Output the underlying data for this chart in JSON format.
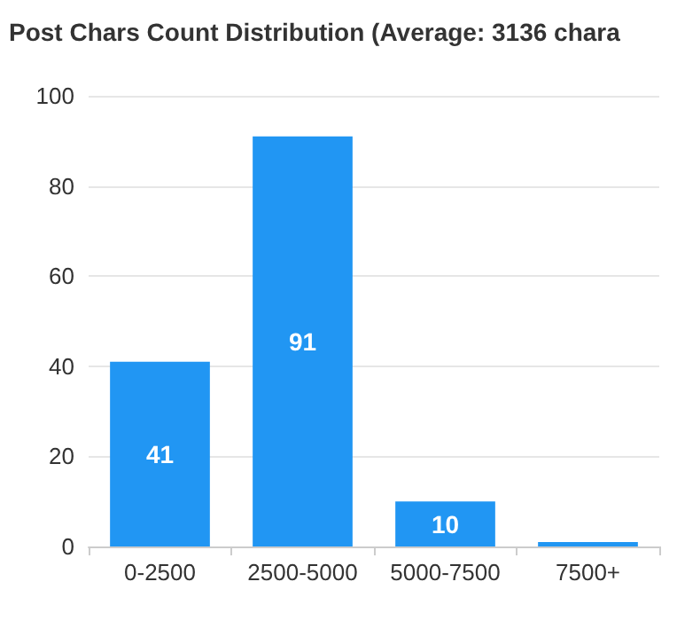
{
  "chart_data": {
    "type": "bar",
    "title": "Post Chars Count Distribution (Average: 3136 chara",
    "categories": [
      "0-2500",
      "2500-5000",
      "5000-7500",
      "7500+"
    ],
    "values": [
      41,
      91,
      10,
      1
    ],
    "value_labels": [
      "41",
      "91",
      "10",
      null
    ],
    "color": "#2196f3",
    "ylim": [
      0,
      100
    ],
    "yticks": [
      0,
      20,
      40,
      60,
      80,
      100
    ],
    "grid": "y"
  }
}
